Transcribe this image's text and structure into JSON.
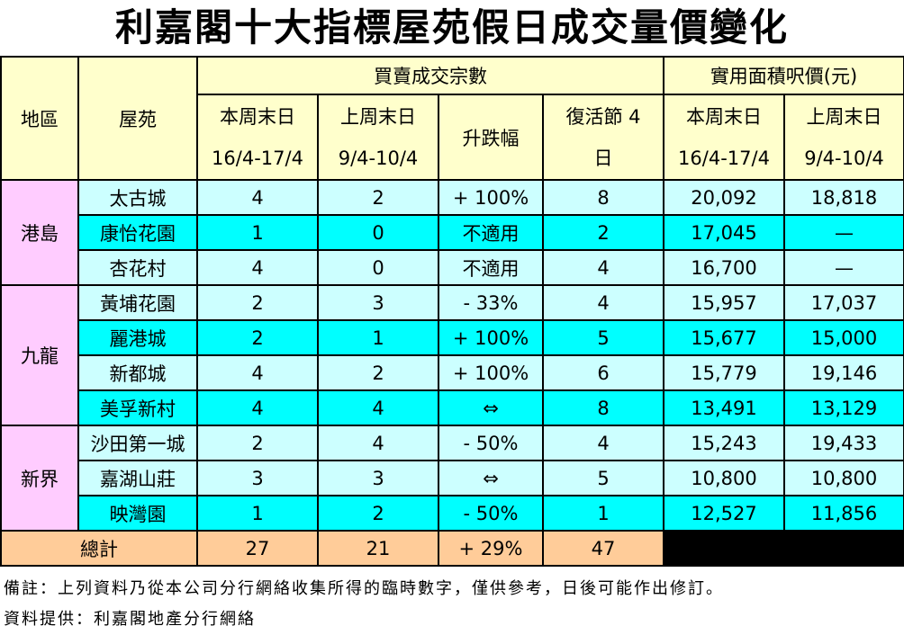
{
  "title": "利嘉閣十大指標屋苑假日成交量價變化",
  "headers": {
    "region": "地區",
    "estate": "屋苑",
    "transactions_group": "買賣成交宗數",
    "price_group": "實用面積呎價(元)",
    "this_weekend_line1": "本周末日",
    "this_weekend_line2": "16/4-17/4",
    "last_weekend_line1": "上周末日",
    "last_weekend_line2": "9/4-10/4",
    "change": "升跌幅",
    "easter_line1": "復活節 4",
    "easter_line2": "日",
    "price_this_line1": "本周末日",
    "price_this_line2": "16/4-17/4",
    "price_last_line1": "上周末日",
    "price_last_line2": "9/4-10/4"
  },
  "regions": [
    {
      "name": "港島",
      "rows": [
        {
          "estate": "太古城",
          "this": "4",
          "last": "2",
          "change": "+ 100%",
          "easter": "8",
          "price_this": "20,092",
          "price_last": "18,818"
        },
        {
          "estate": "康怡花園",
          "this": "1",
          "last": "0",
          "change": "不適用",
          "easter": "2",
          "price_this": "17,045",
          "price_last": "—"
        },
        {
          "estate": "杏花村",
          "this": "4",
          "last": "0",
          "change": "不適用",
          "easter": "4",
          "price_this": "16,700",
          "price_last": "—"
        }
      ]
    },
    {
      "name": "九龍",
      "rows": [
        {
          "estate": "黃埔花園",
          "this": "2",
          "last": "3",
          "change": "- 33%",
          "easter": "4",
          "price_this": "15,957",
          "price_last": "17,037"
        },
        {
          "estate": "麗港城",
          "this": "2",
          "last": "1",
          "change": "+ 100%",
          "easter": "5",
          "price_this": "15,677",
          "price_last": "15,000"
        },
        {
          "estate": "新都城",
          "this": "4",
          "last": "2",
          "change": "+ 100%",
          "easter": "6",
          "price_this": "15,779",
          "price_last": "19,146"
        },
        {
          "estate": "美孚新村",
          "this": "4",
          "last": "4",
          "change": "⇔",
          "easter": "8",
          "price_this": "13,491",
          "price_last": "13,129"
        }
      ]
    },
    {
      "name": "新界",
      "rows": [
        {
          "estate": "沙田第一城",
          "this": "2",
          "last": "4",
          "change": "- 50%",
          "easter": "4",
          "price_this": "15,243",
          "price_last": "19,433"
        },
        {
          "estate": "嘉湖山莊",
          "this": "3",
          "last": "3",
          "change": "⇔",
          "easter": "5",
          "price_this": "10,800",
          "price_last": "10,800"
        },
        {
          "estate": "映灣園",
          "this": "1",
          "last": "2",
          "change": "- 50%",
          "easter": "1",
          "price_this": "12,527",
          "price_last": "11,856"
        }
      ]
    }
  ],
  "total": {
    "label": "總計",
    "this": "27",
    "last": "21",
    "change": "+ 29%",
    "easter": "47"
  },
  "notes": {
    "remark": "備註：上列資料乃從本公司分行網絡收集所得的臨時數字，僅供參考，日後可能作出修訂。",
    "source": "資料提供：利嘉閣地產分行網絡"
  },
  "colors": {
    "header": "#ffffcc",
    "light_cyan": "#ccffff",
    "cyan": "#00ffff",
    "region": "#ffccff",
    "total": "#ffcc99"
  }
}
